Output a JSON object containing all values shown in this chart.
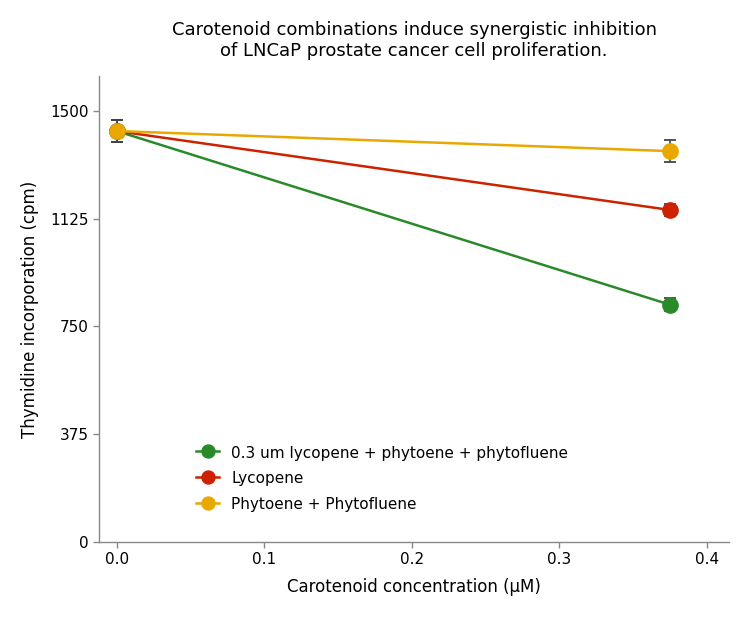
{
  "title": "Carotenoid combinations induce synergistic inhibition\nof LNCaP prostate cancer cell proliferation.",
  "xlabel": "Carotenoid concentration (μM)",
  "ylabel": "Thymidine incorporation (cpm)",
  "xlim": [
    -0.012,
    0.415
  ],
  "ylim": [
    0,
    1620
  ],
  "yticks": [
    0,
    375,
    750,
    1125,
    1500
  ],
  "xticks": [
    0.0,
    0.1,
    0.2,
    0.3,
    0.4
  ],
  "series": [
    {
      "label": "0.3 um lycopene + phytoene + phytofluene",
      "color": "#2a8a2a",
      "x": [
        0.0,
        0.375
      ],
      "y": [
        1430,
        825
      ],
      "yerr": [
        38,
        22
      ]
    },
    {
      "label": "Lycopene",
      "color": "#cc2200",
      "x": [
        0.0,
        0.375
      ],
      "y": [
        1430,
        1155
      ],
      "yerr": [
        38,
        20
      ]
    },
    {
      "label": "Phytoene + Phytofluene",
      "color": "#e8a800",
      "x": [
        0.0,
        0.375
      ],
      "y": [
        1430,
        1360
      ],
      "yerr": [
        38,
        38
      ]
    }
  ],
  "title_fontsize": 13,
  "axis_label_fontsize": 12,
  "tick_fontsize": 11,
  "legend_fontsize": 11,
  "marker_size": 11,
  "line_width": 1.8,
  "bg_color": "#ffffff"
}
